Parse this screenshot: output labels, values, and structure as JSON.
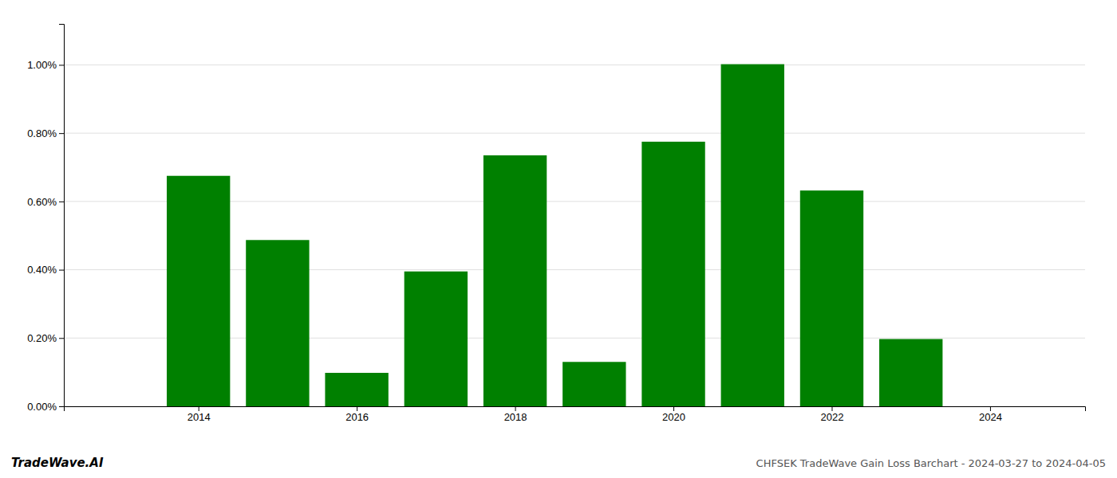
{
  "chart_data": {
    "type": "bar",
    "title": "CHFSEK TradeWave Gain Loss Barchart - 2024-03-27 to 2024-04-05",
    "annotations": [
      "TradeWave.AI"
    ],
    "x": [
      2014,
      2015,
      2016,
      2017,
      2018,
      2019,
      2020,
      2021,
      2022,
      2023
    ],
    "values": [
      0.675,
      0.487,
      0.098,
      0.395,
      0.735,
      0.13,
      0.775,
      1.002,
      0.632,
      0.197
    ],
    "color": "#008000",
    "xlim": [
      2012.3,
      2025.2
    ],
    "xticks": [
      2014,
      2016,
      2018,
      2020,
      2022,
      2024
    ],
    "ylim": [
      0.0,
      1.12
    ],
    "yticks": [
      {
        "value": 0.0,
        "label": "0.00%"
      },
      {
        "value": 0.2,
        "label": "0.20%"
      },
      {
        "value": 0.4,
        "label": "0.40%"
      },
      {
        "value": 0.6,
        "label": "0.60%"
      },
      {
        "value": 0.8,
        "label": "0.80%"
      },
      {
        "value": 1.0,
        "label": "1.00%"
      }
    ],
    "grid": true
  }
}
